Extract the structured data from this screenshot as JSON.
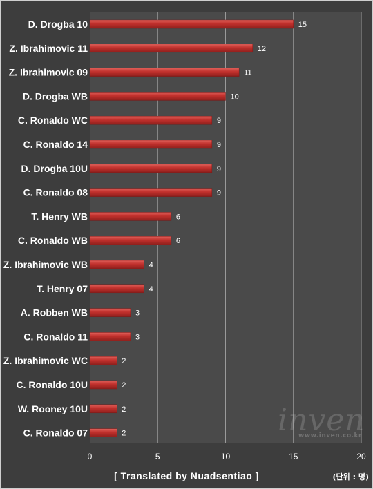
{
  "chart_data": {
    "type": "bar",
    "orientation": "horizontal",
    "categories": [
      "D. Drogba 10",
      "Z. Ibrahimovic 11",
      "Z. Ibrahimovic 09",
      "D. Drogba WB",
      "C. Ronaldo WC",
      "C. Ronaldo 14",
      "D. Drogba 10U",
      "C. Ronaldo 08",
      "T. Henry WB",
      "C. Ronaldo WB",
      "Z. Ibrahimovic WB",
      "T. Henry 07",
      "A. Robben WB",
      "C. Ronaldo 11",
      "Z. Ibrahimovic WC",
      "C. Ronaldo 10U",
      "W. Rooney 10U",
      "C. Ronaldo 07"
    ],
    "values": [
      15,
      12,
      11,
      10,
      9,
      9,
      9,
      9,
      6,
      6,
      4,
      4,
      3,
      3,
      2,
      2,
      2,
      2
    ],
    "xlim": [
      0,
      20
    ],
    "xticks": [
      0,
      5,
      10,
      15,
      20
    ],
    "grid": "vertical",
    "bar_color": "#c0302c",
    "background_color": "#3d3d3d",
    "caption": "[ Translated by Nuadsentiao ]",
    "unit_note": "(단위 : 명)"
  },
  "watermark": {
    "logo_text": "inven",
    "url_text": "www.inven.co.kr"
  }
}
